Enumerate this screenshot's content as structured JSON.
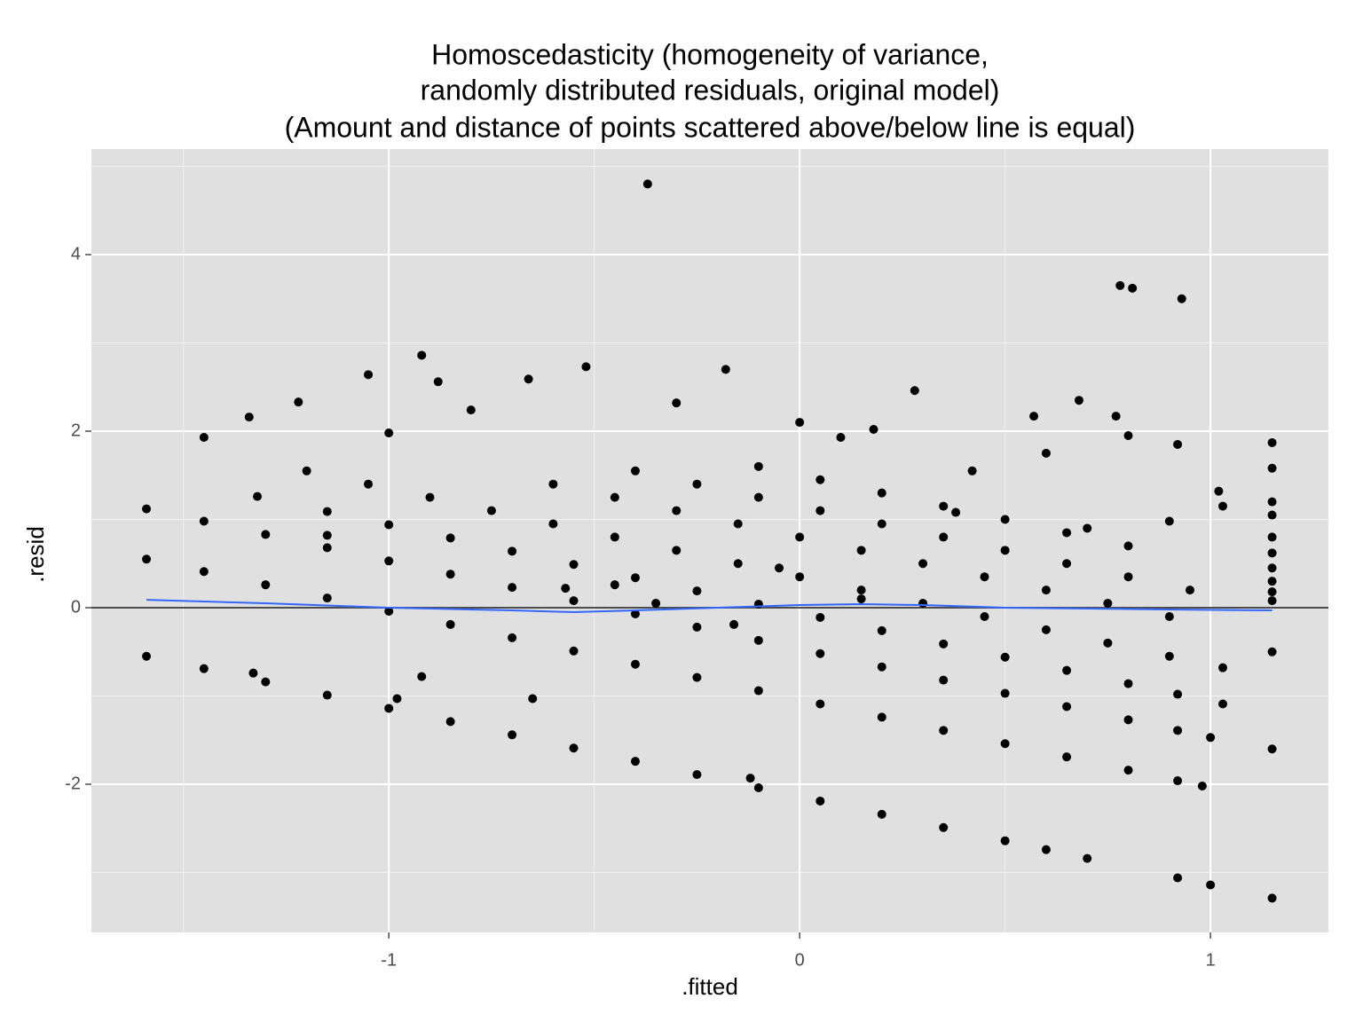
{
  "chart_data": {
    "type": "scatter",
    "title": [
      "Homoscedasticity (homogeneity of variance,",
      "randomly distributed residuals, original model)",
      "(Amount and distance of points scattered above/below line is equal)"
    ],
    "x_label": ".fitted",
    "y_label": ".resid",
    "xlim": [
      -1.724,
      1.287
    ],
    "ylim": [
      -3.678,
      5.196
    ],
    "xticks": [
      -1,
      0,
      1
    ],
    "yticks": [
      -2,
      0,
      2,
      4
    ],
    "xminorticks": [
      -1.5,
      -0.5,
      0.5
    ],
    "yminorticks": [
      -3,
      -1,
      1,
      3,
      5
    ],
    "grid": true,
    "panel_color": "#e0e0e0",
    "color": "#000000",
    "hline": 0,
    "hline_color": "#4d4d4d",
    "smooth": {
      "color": "#3366ff",
      "x": [
        -1.59,
        -1.3,
        -1.0,
        -0.7,
        -0.55,
        -0.4,
        -0.2,
        0.0,
        0.15,
        0.3,
        0.5,
        0.7,
        0.9,
        1.15
      ],
      "y": [
        0.09,
        0.05,
        0.0,
        -0.03,
        -0.05,
        -0.03,
        0.0,
        0.03,
        0.04,
        0.03,
        0.0,
        -0.01,
        -0.02,
        -0.03
      ]
    },
    "x": [
      -1.59,
      -1.45,
      -1.3,
      -1.15,
      -1.0,
      -0.85,
      -0.7,
      -0.55,
      -0.4,
      -0.25,
      -0.1,
      0.05,
      0.2,
      0.35,
      0.5,
      0.6,
      0.7,
      0.92,
      1.0,
      -1.59,
      -1.45,
      -1.3,
      -1.15,
      -1.0,
      -0.85,
      -0.7,
      -0.55,
      -0.4,
      -0.25,
      -0.1,
      0.05,
      0.2,
      0.35,
      0.5,
      0.65,
      0.8,
      0.92,
      0.98,
      -1.59,
      -1.45,
      -1.3,
      -1.15,
      -1.0,
      -0.85,
      -0.7,
      -0.55,
      -0.4,
      -0.25,
      -0.1,
      0.05,
      0.2,
      0.35,
      0.5,
      0.65,
      0.8,
      0.92,
      1.0,
      -1.32,
      -1.15,
      -1.0,
      -0.85,
      -0.7,
      -0.55,
      -0.4,
      -0.25,
      -0.1,
      0.05,
      0.2,
      0.35,
      0.5,
      0.65,
      0.8,
      0.92,
      1.03,
      -1.2,
      -1.05,
      -0.9,
      -0.75,
      -0.6,
      -0.45,
      -0.3,
      -0.15,
      0.0,
      0.15,
      0.3,
      0.45,
      0.6,
      0.75,
      0.9,
      1.03,
      -0.6,
      -0.45,
      -0.3,
      -0.15,
      0.0,
      0.15,
      0.3,
      0.45,
      0.6,
      0.75,
      0.9,
      -0.4,
      -0.25,
      -0.1,
      0.05,
      0.2,
      0.35,
      0.5,
      0.65,
      0.8,
      0.95,
      -0.1,
      0.05,
      0.2,
      0.35,
      0.5,
      0.65,
      0.8,
      1.15,
      1.15,
      1.15,
      1.15,
      1.15,
      1.15,
      1.15,
      1.15,
      1.15,
      1.15,
      1.15,
      1.15,
      1.15,
      -0.37,
      0.78,
      0.81,
      0.93,
      -0.92,
      -1.05,
      -0.52,
      -0.18,
      0.28,
      0.68,
      -1.22,
      -0.66,
      -0.88,
      0.57,
      0.77,
      -1.34,
      0.0,
      0.18,
      -1.0,
      -1.45,
      -0.8,
      -0.3,
      0.1,
      0.8,
      0.92,
      -0.65,
      -0.98,
      -0.92,
      -0.12,
      -1.33,
      -0.57,
      -0.45,
      -0.35,
      -0.16,
      -0.05,
      -1.15,
      0.15,
      0.38,
      0.42,
      0.6,
      0.7,
      0.9,
      1.02,
      1.03
    ],
    "values": [
      -0.55,
      -0.69,
      -0.84,
      -0.99,
      -1.14,
      -1.29,
      -1.44,
      -1.59,
      -1.74,
      -1.89,
      -2.04,
      -2.19,
      -2.34,
      -2.49,
      -2.64,
      -2.74,
      -2.84,
      -3.06,
      -3.14,
      0.55,
      0.41,
      0.26,
      0.11,
      -0.04,
      -0.19,
      -0.34,
      -0.49,
      -0.64,
      -0.79,
      -0.94,
      -1.09,
      -1.24,
      -1.39,
      -1.54,
      -1.69,
      -1.84,
      -1.96,
      -2.02,
      1.12,
      0.98,
      0.83,
      0.68,
      0.53,
      0.38,
      0.23,
      0.08,
      -0.07,
      -0.22,
      -0.37,
      -0.52,
      -0.67,
      -0.82,
      -0.97,
      -1.12,
      -1.27,
      -1.39,
      -1.47,
      1.26,
      1.09,
      0.94,
      0.79,
      0.64,
      0.49,
      0.34,
      0.19,
      0.04,
      -0.11,
      -0.26,
      -0.41,
      -0.56,
      -0.71,
      -0.86,
      -0.98,
      -1.09,
      1.55,
      1.4,
      1.25,
      1.1,
      0.95,
      0.8,
      0.65,
      0.5,
      0.35,
      0.2,
      0.05,
      -0.1,
      -0.25,
      -0.4,
      -0.55,
      -0.68,
      1.4,
      1.25,
      1.1,
      0.95,
      0.8,
      0.65,
      0.5,
      0.35,
      0.2,
      0.05,
      -0.1,
      1.55,
      1.4,
      1.25,
      1.1,
      0.95,
      0.8,
      0.65,
      0.5,
      0.35,
      0.2,
      1.6,
      1.45,
      1.3,
      1.15,
      1.0,
      0.85,
      0.7,
      1.87,
      1.58,
      1.2,
      1.05,
      0.8,
      0.62,
      0.45,
      0.3,
      0.18,
      0.08,
      -0.5,
      -1.6,
      -3.29,
      4.8,
      3.65,
      3.62,
      3.5,
      2.86,
      2.64,
      2.73,
      2.7,
      2.46,
      2.35,
      2.33,
      2.59,
      2.56,
      2.17,
      2.17,
      2.16,
      2.1,
      2.02,
      1.98,
      1.93,
      2.24,
      2.32,
      1.93,
      1.95,
      1.85,
      -1.03,
      -1.03,
      -0.78,
      -1.93,
      -0.74,
      0.22,
      0.26,
      0.05,
      -0.19,
      0.45,
      0.82,
      0.1,
      1.08,
      1.55,
      1.75,
      0.9,
      0.98,
      1.32,
      1.15
    ]
  }
}
